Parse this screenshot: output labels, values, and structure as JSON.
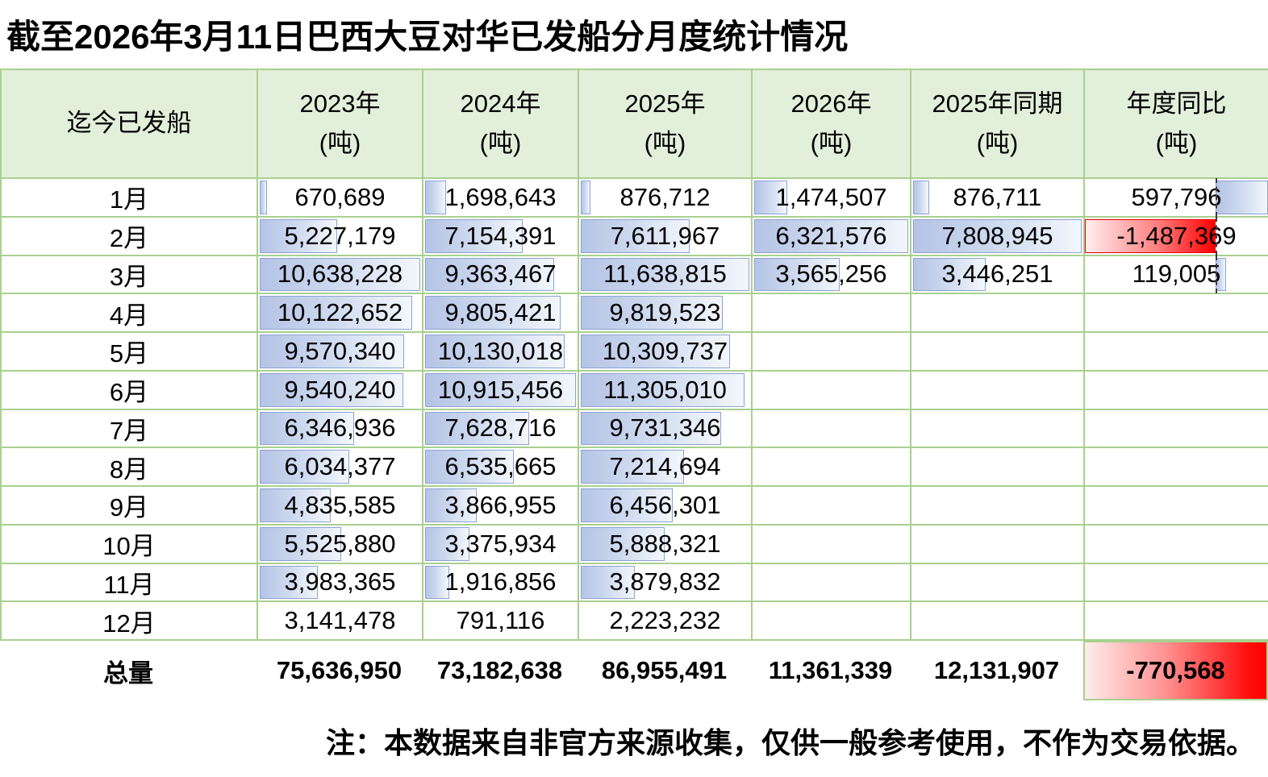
{
  "title": "截至2026年3月11日巴西大豆对华已发船分月度统计情况",
  "note": "注：本数据来自非官方来源收集，仅供一般参考使用，不作为交易依据。",
  "table": {
    "row_header": "迄今已发船",
    "totals_label": "总量",
    "months": [
      "1月",
      "2月",
      "3月",
      "4月",
      "5月",
      "6月",
      "7月",
      "8月",
      "9月",
      "10月",
      "11月",
      "12月"
    ],
    "columns": [
      {
        "label": "2023年",
        "unit": "(吨)",
        "total": "75,636,950",
        "values": [
          "670,689",
          "5,227,179",
          "10,638,228",
          "10,122,652",
          "9,570,340",
          "9,540,240",
          "6,346,936",
          "6,034,377",
          "4,835,585",
          "5,525,880",
          "3,983,365",
          "3,141,478"
        ]
      },
      {
        "label": "2024年",
        "unit": "(吨)",
        "total": "73,182,638",
        "values": [
          "1,698,643",
          "7,154,391",
          "9,363,467",
          "9,805,421",
          "10,130,018",
          "10,915,456",
          "7,628,716",
          "6,535,665",
          "3,866,955",
          "3,375,934",
          "1,916,856",
          "791,116"
        ]
      },
      {
        "label": "2025年",
        "unit": "(吨)",
        "total": "86,955,491",
        "values": [
          "876,712",
          "7,611,967",
          "11,638,815",
          "9,819,523",
          "10,309,737",
          "11,305,010",
          "9,731,346",
          "7,214,694",
          "6,456,301",
          "5,888,321",
          "3,879,832",
          "2,223,232"
        ]
      },
      {
        "label": "2026年",
        "unit": "(吨)",
        "total": "11,361,339",
        "values": [
          "1,474,507",
          "6,321,576",
          "3,565,256",
          "",
          "",
          "",
          "",
          "",
          "",
          "",
          "",
          ""
        ]
      },
      {
        "label": "2025年同期",
        "unit": "(吨)",
        "total": "12,131,907",
        "values": [
          "876,711",
          "7,808,945",
          "3,446,251",
          "",
          "",
          "",
          "",
          "",
          "",
          "",
          "",
          ""
        ]
      },
      {
        "label": "年度同比",
        "unit": "(吨)",
        "total": "-770,568",
        "diverging": true,
        "values": [
          "597,796",
          "-1,487,369",
          "119,005",
          "",
          "",
          "",
          "",
          "",
          "",
          "",
          "",
          ""
        ]
      }
    ]
  },
  "colors": {
    "header_bg": "#e2efda",
    "grid_border": "#a9d08e",
    "bar_blue": "#b5c4e6",
    "bar_blue_border": "#8ba3d1",
    "bar_red": "#ff0000",
    "text": "#000000"
  },
  "chart_data": {
    "type": "table",
    "title": "截至2026年3月11日巴西大豆对华已发船分月度统计情况",
    "categories": [
      "1月",
      "2月",
      "3月",
      "4月",
      "5月",
      "6月",
      "7月",
      "8月",
      "9月",
      "10月",
      "11月",
      "12月"
    ],
    "series": [
      {
        "name": "2023年(吨)",
        "values": [
          670689,
          5227179,
          10638228,
          10122652,
          9570340,
          9540240,
          6346936,
          6034377,
          4835585,
          5525880,
          3983365,
          3141478
        ],
        "total": 75636950
      },
      {
        "name": "2024年(吨)",
        "values": [
          1698643,
          7154391,
          9363467,
          9805421,
          10130018,
          10915456,
          7628716,
          6535665,
          3866955,
          3375934,
          1916856,
          791116
        ],
        "total": 73182638
      },
      {
        "name": "2025年(吨)",
        "values": [
          876712,
          7611967,
          11638815,
          9819523,
          10309737,
          11305010,
          9731346,
          7214694,
          6456301,
          5888321,
          3879832,
          2223232
        ],
        "total": 86955491
      },
      {
        "name": "2026年(吨)",
        "values": [
          1474507,
          6321576,
          3565256,
          null,
          null,
          null,
          null,
          null,
          null,
          null,
          null,
          null
        ],
        "total": 11361339
      },
      {
        "name": "2025年同期(吨)",
        "values": [
          876711,
          7808945,
          3446251,
          null,
          null,
          null,
          null,
          null,
          null,
          null,
          null,
          null
        ],
        "total": 12131907
      },
      {
        "name": "年度同比(吨)",
        "values": [
          597796,
          -1487369,
          119005,
          null,
          null,
          null,
          null,
          null,
          null,
          null,
          null,
          null
        ],
        "total": -770568
      }
    ],
    "legend_position": "none",
    "grid": true
  }
}
